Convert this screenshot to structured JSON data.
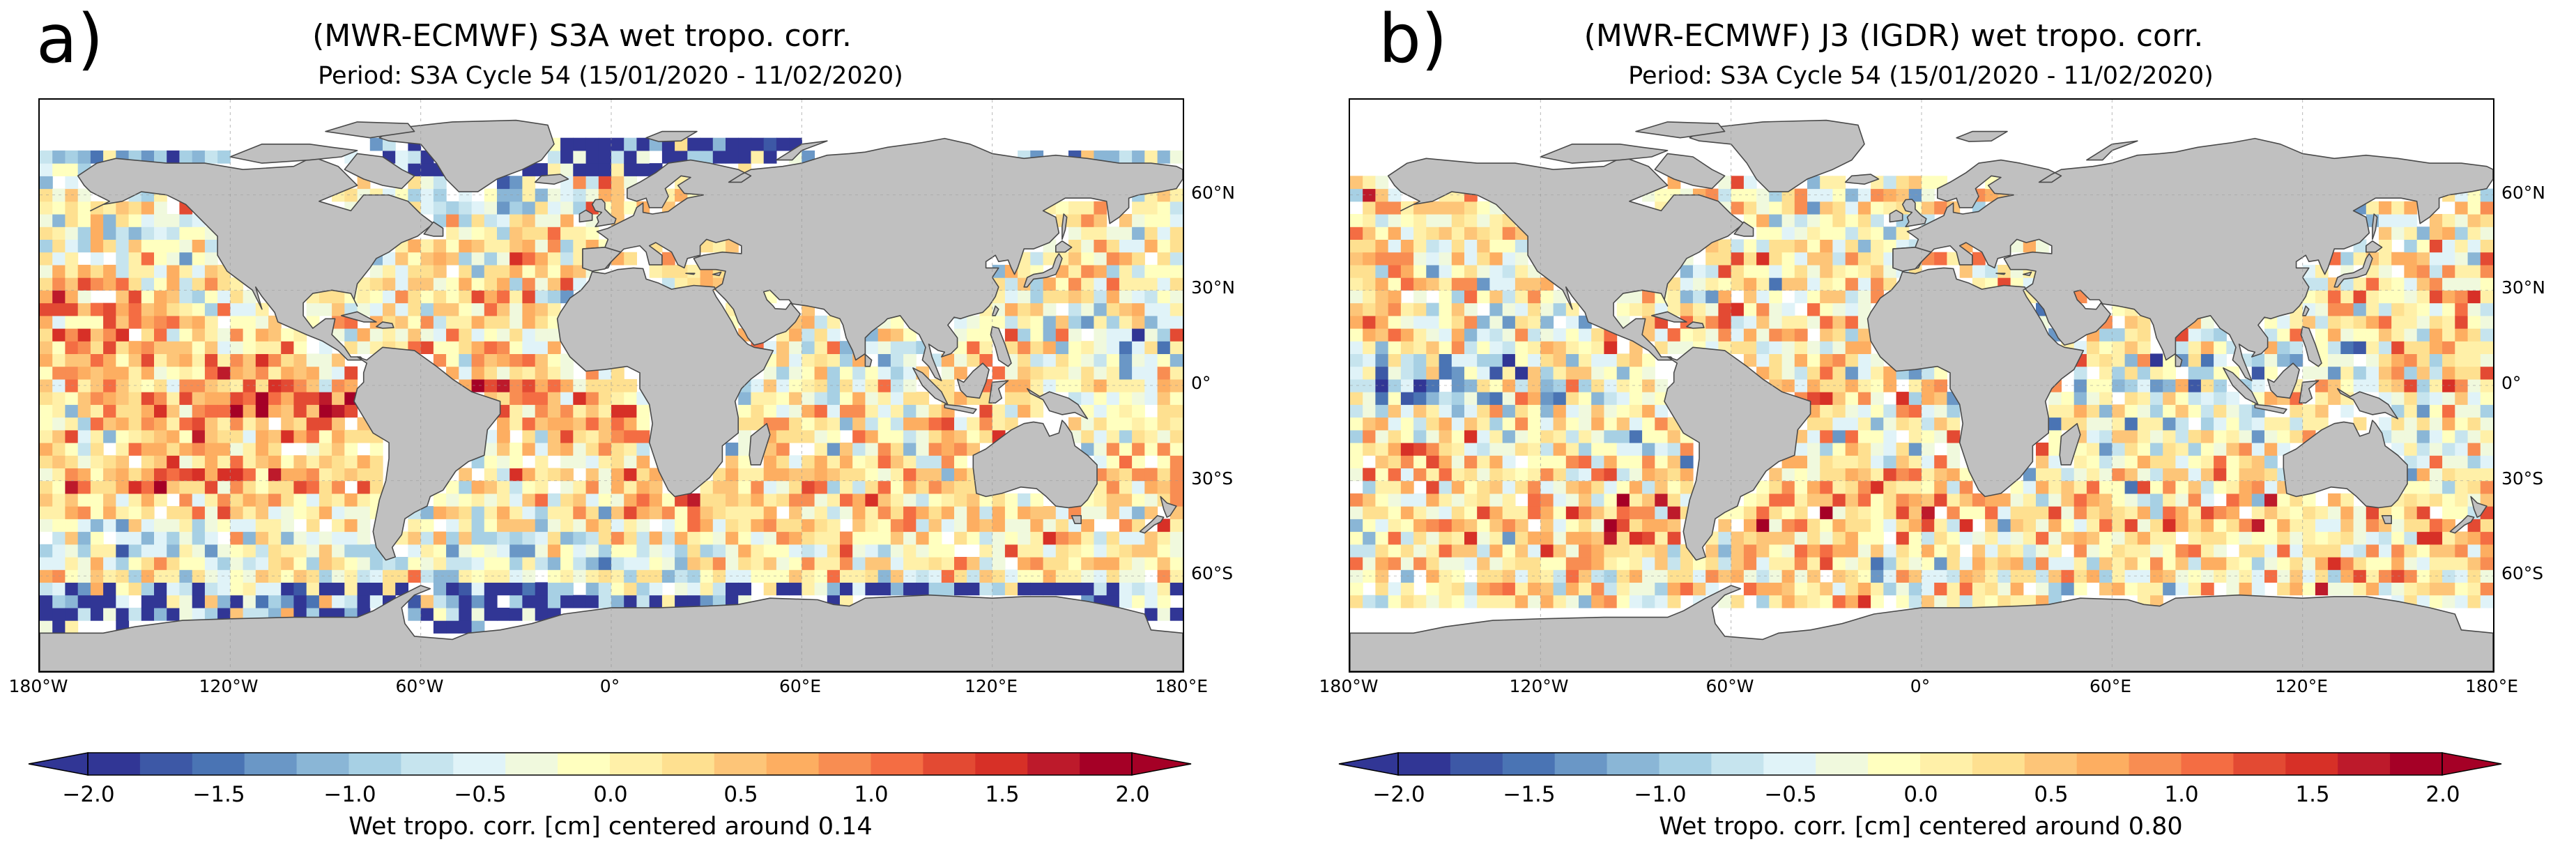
{
  "panels": [
    {
      "letter": "a)",
      "title": "(MWR-ECMWF) S3A wet tropo. corr.",
      "subtitle": "Period: S3A Cycle 54 (15/01/2020 - 11/02/2020)",
      "lat_labels": [
        "60°N",
        "30°N",
        "0°",
        "30°S",
        "60°S"
      ],
      "lon_labels": [
        "180°W",
        "120°W",
        "60°W",
        "0°",
        "60°E",
        "120°E",
        "180°E"
      ],
      "colorbar_ticks": [
        "−2.0",
        "−1.5",
        "−1.0",
        "−0.5",
        "0.0",
        "0.5",
        "1.0",
        "1.5",
        "2.0"
      ],
      "colorbar_label": "Wet tropo. corr.  [cm] centered around 0.14",
      "center_value": 0.14
    },
    {
      "letter": "b)",
      "title": "(MWR-ECMWF) J3 (IGDR)  wet tropo. corr.",
      "subtitle": "Period: S3A Cycle 54 (15/01/2020 - 11/02/2020)",
      "lat_labels": [
        "60°N",
        "30°N",
        "0°",
        "30°S",
        "60°S"
      ],
      "lon_labels": [
        "180°W",
        "120°W",
        "60°W",
        "0°",
        "60°E",
        "120°E",
        "180°E"
      ],
      "colorbar_ticks": [
        "−2.0",
        "−1.5",
        "−1.0",
        "−0.5",
        "0.0",
        "0.5",
        "1.0",
        "1.5",
        "2.0"
      ],
      "colorbar_label": "Wet tropo. corr.  [cm] centered around 0.80",
      "center_value": 0.8
    }
  ],
  "colormap": {
    "name": "RdYlBu_r",
    "vmin": -2.0,
    "vmax": 2.0,
    "step": 0.2,
    "colors": [
      "#313695",
      "#3d58a6",
      "#4a74b4",
      "#6a97c6",
      "#8ab6d6",
      "#a7d0e4",
      "#c6e4ee",
      "#e0f3f8",
      "#f0f9dd",
      "#ffffbf",
      "#fff0a8",
      "#fee090",
      "#fdc578",
      "#fdae61",
      "#f88d52",
      "#f46d43",
      "#e34a33",
      "#d73027",
      "#bd1a2b",
      "#a50026"
    ]
  },
  "map_colors": {
    "land": "#c0c0c0",
    "coast": "#4a4a4a",
    "nodata": "#ffffff",
    "grid": "#9a9a9a"
  }
}
